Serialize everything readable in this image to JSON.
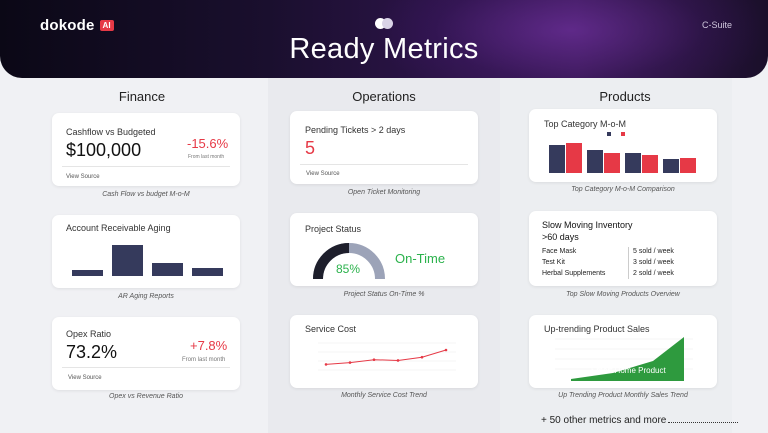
{
  "brand": {
    "name": "dokode",
    "ai_badge": "AI"
  },
  "header": {
    "title": "Ready Metrics",
    "tag": "C-Suite"
  },
  "columns": {
    "finance": "Finance",
    "operations": "Operations",
    "products": "Products"
  },
  "finance": {
    "cashflow": {
      "title": "Cashflow vs Budgeted",
      "value": "$100,000",
      "delta": "-15.6%",
      "delta_sub": "From last month",
      "link": "View Source",
      "caption": "Cash Flow vs budget M-o-M"
    },
    "ar_aging": {
      "title": "Account Receivable Aging",
      "caption": "AR Aging Reports",
      "bars": [
        0.12,
        0.6,
        0.24,
        0.15
      ]
    },
    "opex": {
      "title": "Opex Ratio",
      "value": "73.2%",
      "delta": "+7.8%",
      "delta_sub": "From last month",
      "link": "View Source",
      "caption": "Opex vs Revenue Ratio"
    }
  },
  "operations": {
    "tickets": {
      "title": "Pending Tickets > 2 days",
      "value": "5",
      "link": "View Source",
      "caption": "Open Ticket Monitoring"
    },
    "project": {
      "title": "Project Status",
      "percent": "85%",
      "percent_value": 0.85,
      "status": "On-Time",
      "caption": "Project Status On-Time %"
    },
    "service_cost": {
      "title": "Service Cost",
      "caption": "Monthly Service Cost Trend",
      "points": [
        0.35,
        0.4,
        0.48,
        0.46,
        0.55,
        0.75
      ]
    }
  },
  "products": {
    "top_category": {
      "title": "Top Category M-o-M",
      "caption": "Top Category M-o-M Comparison",
      "groups": [
        {
          "a": 0.82,
          "b": 0.88
        },
        {
          "a": 0.68,
          "b": 0.58
        },
        {
          "a": 0.6,
          "b": 0.52
        },
        {
          "a": 0.42,
          "b": 0.45
        }
      ]
    },
    "slow_moving": {
      "title_line1": "Slow Moving Inventory",
      "title_line2": ">60 days",
      "caption": "Top Slow Moving Products Overview",
      "items": [
        {
          "name": "Face Mask",
          "qty": "5 sold / week"
        },
        {
          "name": "Test Kit",
          "qty": "3 sold / week"
        },
        {
          "name": "Herbal Supplements",
          "qty": "2 sold / week"
        }
      ]
    },
    "uptrending": {
      "title": "Up-trending Product Sales",
      "series_label": "Smart Home Product",
      "caption": "Up Trending Product Monthly Sales Trend"
    }
  },
  "footer": {
    "note": "+ 50 other metrics and more"
  },
  "colors": {
    "accent_red": "#e63946",
    "bar_navy": "#353a5c",
    "green": "#2bb24c",
    "gauge_gray": "#9ca3b8"
  }
}
